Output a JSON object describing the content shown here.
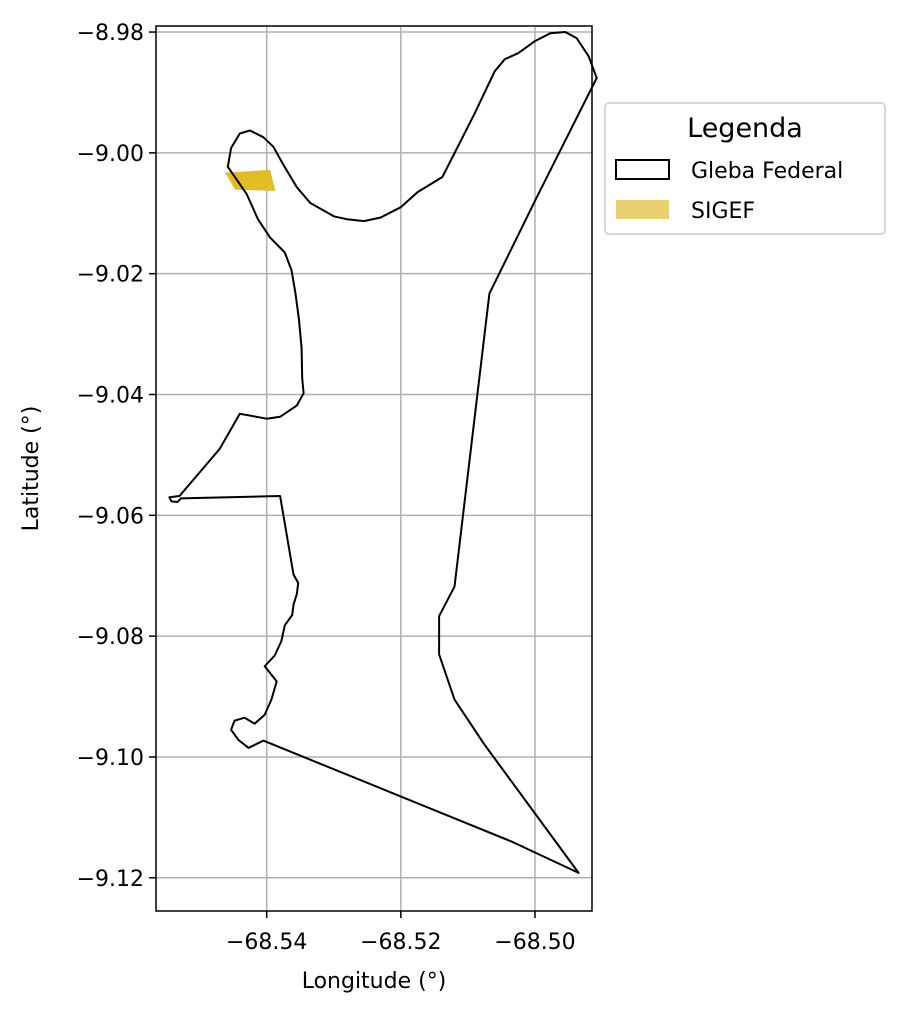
{
  "chart_data": {
    "type": "map",
    "xlabel": "Longitude (°)",
    "ylabel": "Latitude (°)",
    "xlim": [
      -68.5565,
      -68.4915
    ],
    "ylim": [
      -9.1255,
      -8.979
    ],
    "xticks": [
      -68.54,
      -68.52,
      -68.5
    ],
    "xtick_labels": [
      "−68.54",
      "−68.52",
      "−68.50"
    ],
    "yticks": [
      -8.98,
      -9.0,
      -9.02,
      -9.04,
      -9.06,
      -9.08,
      -9.1,
      -9.12
    ],
    "ytick_labels": [
      "−8.98",
      "−9.00",
      "−9.02",
      "−9.04",
      "−9.06",
      "−9.08",
      "−9.10",
      "−9.12"
    ],
    "grid": true,
    "legend": {
      "title": "Legenda",
      "placement": "outside-right-top",
      "entries": [
        {
          "label": "Gleba Federal",
          "style": "outline",
          "color": "#000000"
        },
        {
          "label": "SIGEF",
          "style": "fill",
          "color": "#e8d070"
        }
      ]
    },
    "layers": [
      {
        "name": "Gleba Federal",
        "type": "polygon-outline",
        "color": "#000000",
        "coordinates": [
          [
            -68.5458,
            -9.0023
          ],
          [
            -68.5453,
            -8.9992
          ],
          [
            -68.544,
            -8.9968
          ],
          [
            -68.5425,
            -8.9963
          ],
          [
            -68.5405,
            -8.9974
          ],
          [
            -68.539,
            -8.999
          ],
          [
            -68.5375,
            -9.002
          ],
          [
            -68.5355,
            -9.0057
          ],
          [
            -68.5335,
            -9.0083
          ],
          [
            -68.53,
            -9.0105
          ],
          [
            -68.528,
            -9.011
          ],
          [
            -68.5255,
            -9.0113
          ],
          [
            -68.523,
            -9.0107
          ],
          [
            -68.52,
            -9.009
          ],
          [
            -68.5175,
            -9.0065
          ],
          [
            -68.5138,
            -9.004
          ],
          [
            -68.509,
            -8.9935
          ],
          [
            -68.506,
            -8.9865
          ],
          [
            -68.5045,
            -8.9845
          ],
          [
            -68.5025,
            -8.9835
          ],
          [
            -68.5,
            -8.9815
          ],
          [
            -68.4977,
            -8.9802
          ],
          [
            -68.4955,
            -8.98
          ],
          [
            -68.4938,
            -8.981
          ],
          [
            -68.492,
            -8.984
          ],
          [
            -68.4908,
            -8.9876
          ],
          [
            -68.4998,
            -9.0075
          ],
          [
            -68.5068,
            -9.0233
          ],
          [
            -68.512,
            -9.0718
          ],
          [
            -68.5143,
            -9.0767
          ],
          [
            -68.5143,
            -9.083
          ],
          [
            -68.512,
            -9.0905
          ],
          [
            -68.5075,
            -9.098
          ],
          [
            -68.4935,
            -9.1192
          ],
          [
            -68.5035,
            -9.114
          ],
          [
            -68.5405,
            -9.0973
          ],
          [
            -68.5427,
            -9.0985
          ],
          [
            -68.5442,
            -9.0972
          ],
          [
            -68.5453,
            -9.0955
          ],
          [
            -68.5448,
            -9.094
          ],
          [
            -68.5433,
            -9.0935
          ],
          [
            -68.5418,
            -9.0945
          ],
          [
            -68.5403,
            -9.093
          ],
          [
            -68.5393,
            -9.0905
          ],
          [
            -68.5385,
            -9.0875
          ],
          [
            -68.5403,
            -9.085
          ],
          [
            -68.5388,
            -9.0832
          ],
          [
            -68.5378,
            -9.0808
          ],
          [
            -68.5373,
            -9.0782
          ],
          [
            -68.5362,
            -9.0765
          ],
          [
            -68.536,
            -9.0748
          ],
          [
            -68.5355,
            -9.073
          ],
          [
            -68.5353,
            -9.0712
          ],
          [
            -68.536,
            -9.0698
          ],
          [
            -68.538,
            -9.0568
          ],
          [
            -68.5528,
            -9.0572
          ],
          [
            -68.5533,
            -9.0578
          ],
          [
            -68.5542,
            -9.0577
          ],
          [
            -68.5545,
            -9.057
          ],
          [
            -68.553,
            -9.0568
          ],
          [
            -68.547,
            -9.049
          ],
          [
            -68.544,
            -9.0432
          ],
          [
            -68.5415,
            -9.0437
          ],
          [
            -68.54,
            -9.044
          ],
          [
            -68.538,
            -9.0437
          ],
          [
            -68.5355,
            -9.0418
          ],
          [
            -68.5345,
            -9.0398
          ],
          [
            -68.5347,
            -9.0373
          ],
          [
            -68.5348,
            -9.0323
          ],
          [
            -68.5352,
            -9.0275
          ],
          [
            -68.5357,
            -9.0233
          ],
          [
            -68.5363,
            -9.0194
          ],
          [
            -68.5373,
            -9.0165
          ],
          [
            -68.5395,
            -9.014
          ],
          [
            -68.5413,
            -9.011
          ],
          [
            -68.543,
            -9.0068
          ],
          [
            -68.5458,
            -9.0023
          ]
        ]
      },
      {
        "name": "SIGEF",
        "type": "polygon-fill",
        "color": "#e2bc22",
        "coordinates": [
          [
            -68.5462,
            -9.0033
          ],
          [
            -68.5395,
            -9.0028
          ],
          [
            -68.5387,
            -9.0063
          ],
          [
            -68.5447,
            -9.0061
          ],
          [
            -68.5462,
            -9.0033
          ]
        ]
      }
    ]
  }
}
